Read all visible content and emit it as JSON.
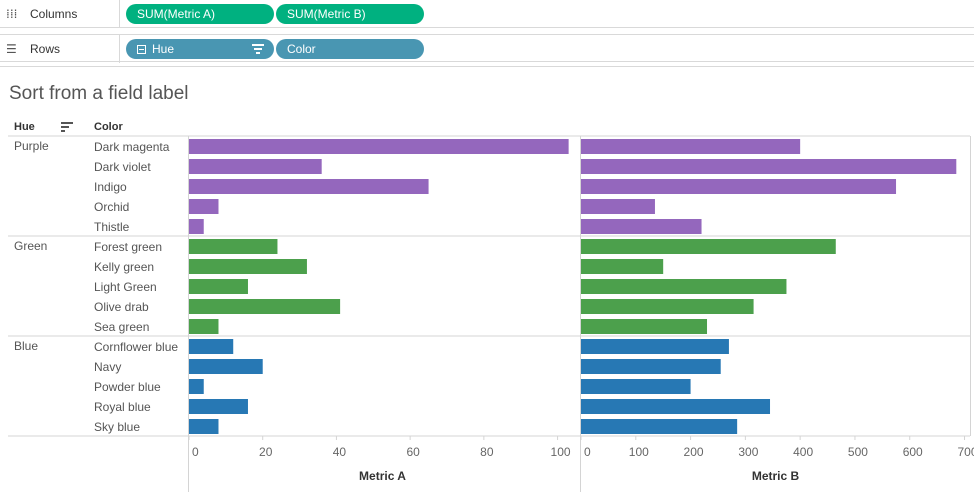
{
  "shelves": {
    "columns": {
      "label": "Columns",
      "pills": [
        "SUM(Metric A)",
        "SUM(Metric B)"
      ]
    },
    "rows": {
      "label": "Rows",
      "pills": [
        "Hue",
        "Color"
      ]
    }
  },
  "title": "Sort from a field label",
  "headers": {
    "hue": "Hue",
    "color": "Color"
  },
  "colors": {
    "Purple": "#9467bd",
    "Green": "#4ca04c",
    "Blue": "#2778b4",
    "pill_green": "#00b180",
    "pill_blue": "#4996b2"
  },
  "chart_data": {
    "type": "bar",
    "orientation": "horizontal",
    "groups": [
      {
        "hue": "Purple",
        "colors": [
          "Dark magenta",
          "Dark violet",
          "Indigo",
          "Orchid",
          "Thistle"
        ]
      },
      {
        "hue": "Green",
        "colors": [
          "Forest green",
          "Kelly green",
          "Light Green",
          "Olive drab",
          "Sea green"
        ]
      },
      {
        "hue": "Blue",
        "colors": [
          "Cornflower blue",
          "Navy",
          "Powder blue",
          "Royal blue",
          "Sky blue"
        ]
      }
    ],
    "series": [
      {
        "name": "Metric A",
        "values": [
          103,
          36,
          65,
          8,
          4,
          24,
          32,
          16,
          41,
          8,
          12,
          20,
          4,
          16,
          8
        ],
        "xlim": [
          0,
          105
        ],
        "ticks": [
          0,
          20,
          40,
          60,
          80,
          100
        ]
      },
      {
        "name": "Metric B",
        "values": [
          400,
          685,
          575,
          135,
          220,
          465,
          150,
          375,
          315,
          230,
          270,
          255,
          200,
          345,
          285
        ],
        "xlim": [
          0,
          710
        ],
        "ticks": [
          0,
          100,
          200,
          300,
          400,
          500,
          600,
          700
        ]
      }
    ],
    "grid": false,
    "legend": "none"
  }
}
